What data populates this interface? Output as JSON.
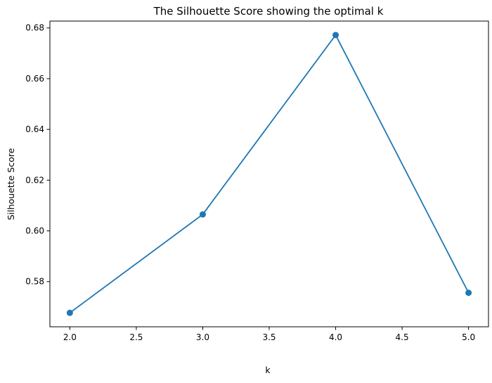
{
  "chart_data": {
    "type": "line",
    "title": "The Silhouette Score showing the optimal k",
    "xlabel": "k",
    "ylabel": "Silhouette Score",
    "x": [
      2,
      3,
      4,
      5
    ],
    "series": [
      {
        "values": [
          0.5677,
          0.6065,
          0.6772,
          0.5756
        ],
        "color": "#1f77b4",
        "marker": "circle"
      }
    ],
    "xlim": [
      1.85,
      5.15
    ],
    "ylim": [
      0.5622,
      0.6827
    ],
    "xticks": [
      2.0,
      2.5,
      3.0,
      3.5,
      4.0,
      4.5,
      5.0
    ],
    "xtick_labels": [
      "2.0",
      "2.5",
      "3.0",
      "3.5",
      "4.0",
      "4.5",
      "5.0"
    ],
    "yticks": [
      0.58,
      0.6,
      0.62,
      0.64,
      0.66,
      0.68
    ],
    "ytick_labels": [
      "0.58",
      "0.60",
      "0.62",
      "0.64",
      "0.66",
      "0.68"
    ],
    "grid": false,
    "legend": "none"
  }
}
